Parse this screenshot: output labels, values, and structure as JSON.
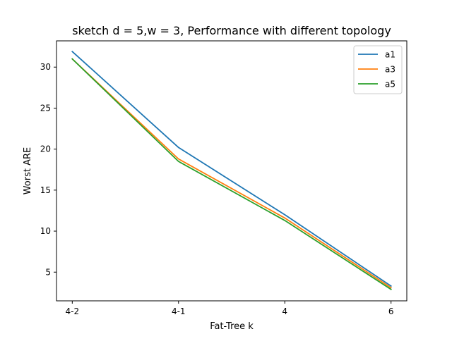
{
  "chart_data": {
    "type": "line",
    "title": "sketch d = 5,w = 3, Performance with different topology",
    "xlabel": "Fat-Tree k",
    "ylabel": "Worst ARE",
    "categories": [
      "4-2",
      "4-1",
      "4",
      "6"
    ],
    "ylim": [
      1.5,
      33.2
    ],
    "yticks": [
      5,
      10,
      15,
      20,
      25,
      30
    ],
    "grid": false,
    "legend_position": "upper right",
    "series": [
      {
        "name": "a1",
        "color": "#1f77b4",
        "values": [
          31.9,
          20.2,
          12.0,
          3.3
        ]
      },
      {
        "name": "a3",
        "color": "#ff7f0e",
        "values": [
          31.0,
          18.8,
          11.6,
          3.1
        ]
      },
      {
        "name": "a5",
        "color": "#2ca02c",
        "values": [
          31.0,
          18.5,
          11.3,
          2.9
        ]
      }
    ]
  }
}
